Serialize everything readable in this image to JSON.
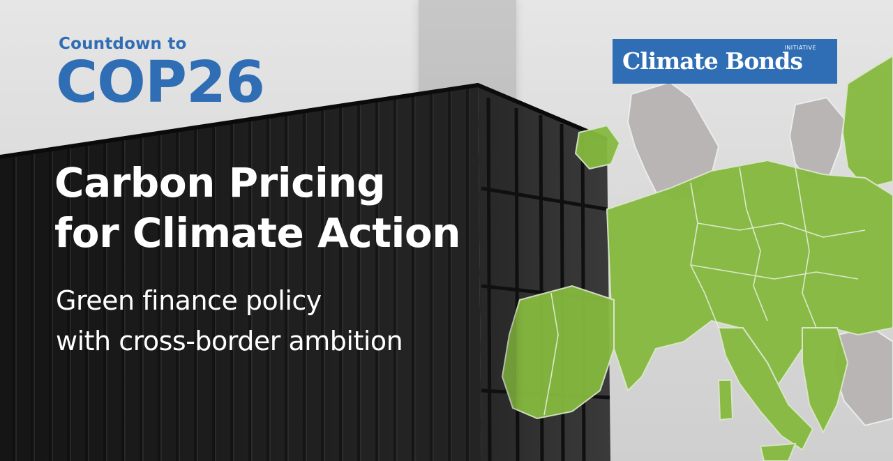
{
  "banner": {
    "kicker": "Countdown to",
    "event": "COP26",
    "headline": [
      "Carbon Pricing",
      "for Climate Action"
    ],
    "subheadline": [
      "Green finance policy",
      "with cross-border ambition"
    ]
  },
  "logo": {
    "wordmark": "Climate Bonds",
    "tag": "INITIATIVE"
  },
  "background": {
    "map_region": "Europe",
    "photo_subject": "shipping container"
  },
  "colors": {
    "brand_blue": "#2f6db5",
    "map_green": "#86b93f",
    "container_black": "#1c1c1c",
    "sky_grey": "#e0e0e0"
  }
}
